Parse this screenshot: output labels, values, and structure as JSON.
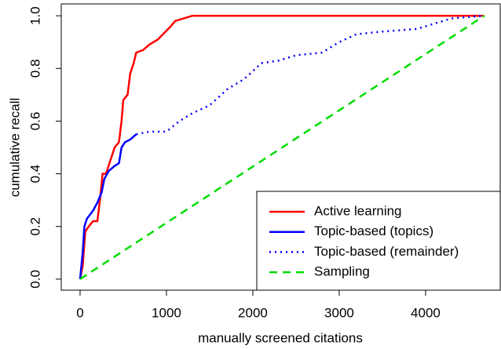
{
  "chart_data": {
    "type": "line",
    "x_label": "manually screened citations",
    "y_label": "cumulative recall",
    "xlim": [
      -218,
      4864
    ],
    "ylim": [
      -0.042,
      1.045
    ],
    "xticks": [
      0,
      1000,
      2000,
      3000,
      4000
    ],
    "yticks": [
      {
        "value": 0,
        "label": "0.0"
      },
      {
        "value": 0.2,
        "label": "0.2"
      },
      {
        "value": 0.4,
        "label": "0.4"
      },
      {
        "value": 0.6,
        "label": "0.6"
      },
      {
        "value": 0.8,
        "label": "0.8"
      },
      {
        "value": 1,
        "label": "1.0"
      }
    ],
    "legend": "bottom-right",
    "series": [
      {
        "name": "Active learning",
        "color": "#ff0000",
        "line_style": "solid",
        "x": [
          0,
          30,
          60,
          100,
          150,
          200,
          230,
          260,
          300,
          350,
          380,
          400,
          450,
          480,
          500,
          550,
          580,
          620,
          650,
          730,
          800,
          900,
          960,
          1050,
          1100,
          1300,
          4680
        ],
        "values": [
          0,
          0.05,
          0.18,
          0.2,
          0.22,
          0.22,
          0.3,
          0.4,
          0.4,
          0.45,
          0.48,
          0.5,
          0.52,
          0.6,
          0.68,
          0.7,
          0.78,
          0.82,
          0.86,
          0.87,
          0.89,
          0.91,
          0.93,
          0.96,
          0.98,
          1.0,
          1.0
        ]
      },
      {
        "name": "Topic-based (topics)",
        "color": "#0000ff",
        "line_style": "solid",
        "x": [
          0,
          30,
          50,
          80,
          150,
          200,
          250,
          280,
          330,
          400,
          450,
          480,
          520,
          580,
          650
        ],
        "values": [
          0,
          0.1,
          0.2,
          0.23,
          0.26,
          0.29,
          0.33,
          0.38,
          0.41,
          0.43,
          0.44,
          0.5,
          0.52,
          0.53,
          0.55
        ]
      },
      {
        "name": "Topic-based (remainder)",
        "color": "#0000ff",
        "line_style": "dotted",
        "x": [
          650,
          800,
          1000,
          1150,
          1300,
          1500,
          1700,
          1900,
          2100,
          2300,
          2500,
          2800,
          3000,
          3200,
          3500,
          3900,
          4100,
          4300,
          4680
        ],
        "values": [
          0.55,
          0.56,
          0.56,
          0.6,
          0.63,
          0.66,
          0.72,
          0.76,
          0.82,
          0.83,
          0.85,
          0.86,
          0.9,
          0.93,
          0.94,
          0.95,
          0.97,
          0.99,
          1.0
        ]
      },
      {
        "name": "Sampling",
        "color": "#00dd00",
        "line_style": "dashed",
        "x": [
          0,
          4680
        ],
        "values": [
          0,
          1
        ]
      }
    ]
  }
}
